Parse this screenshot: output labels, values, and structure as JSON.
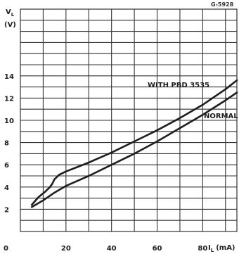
{
  "figure_ref": "G-5928",
  "chart_data": {
    "type": "line",
    "title": "",
    "ylabel_symbol": "V",
    "ylabel_subscript": "L",
    "ylabel_unit": "(V)",
    "xlabel_symbol": "I",
    "xlabel_subscript": "L",
    "xlabel_unit": "(mA)",
    "xlim": [
      0,
      95
    ],
    "ylim": [
      0,
      20
    ],
    "x_ticks": [
      "0",
      "20",
      "40",
      "60",
      "80"
    ],
    "y_ticks": [
      "2",
      "4",
      "6",
      "8",
      "10",
      "12",
      "14"
    ],
    "grid": true,
    "series": [
      {
        "name": "WITH PBD 3535",
        "x": [
          5,
          8,
          11,
          13,
          14,
          15,
          16,
          17,
          18,
          20,
          25,
          30,
          40,
          50,
          60,
          70,
          80,
          90,
          95
        ],
        "y": [
          2.4,
          3.1,
          3.6,
          4.0,
          4.3,
          4.7,
          4.9,
          5.1,
          5.2,
          5.4,
          5.8,
          6.2,
          7.1,
          8.1,
          9.1,
          10.2,
          11.4,
          12.8,
          13.6
        ]
      },
      {
        "name": "NORMAL",
        "x": [
          5,
          10,
          15,
          20,
          30,
          40,
          50,
          60,
          70,
          80,
          90,
          95
        ],
        "y": [
          2.2,
          2.8,
          3.5,
          4.1,
          5.0,
          6.0,
          7.0,
          8.1,
          9.3,
          10.5,
          11.8,
          12.5
        ]
      }
    ]
  }
}
